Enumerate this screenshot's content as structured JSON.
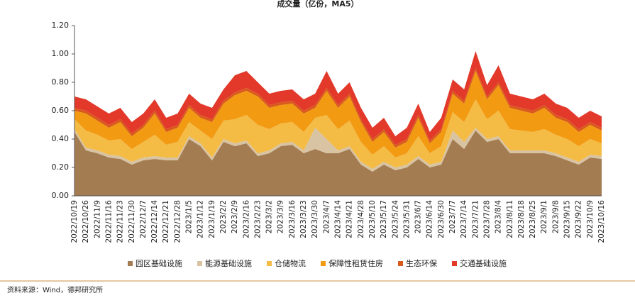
{
  "chart_data": {
    "type": "stacked_area",
    "title": "成交量（亿份，MA5）",
    "categories": [
      "2022/10/19",
      "2022/10/26",
      "2022/11/9",
      "2022/11/16",
      "2022/11/23",
      "2022/11/30",
      "2022/12/7",
      "2022/12/14",
      "2022/12/21",
      "2022/12/28",
      "2023/1/5",
      "2023/1/12",
      "2023/1/19",
      "2023/2/2",
      "2023/2/9",
      "2023/2/16",
      "2023/2/23",
      "2023/3/2",
      "2023/3/9",
      "2023/3/16",
      "2023/3/23",
      "2023/3/30",
      "2023/4/7",
      "2023/4/14",
      "2023/4/21",
      "2023/4/28",
      "2023/5/10",
      "2023/5/17",
      "2023/5/24",
      "2023/5/31",
      "2023/6/7",
      "2023/6/14",
      "2023/6/30",
      "2023/7/7",
      "2023/7/14",
      "2023/7/21",
      "2023/7/28",
      "2023/8/4",
      "2023/8/11",
      "2023/8/18",
      "2023/8/25",
      "2023/9/1",
      "2023/9/8",
      "2023/9/15",
      "2023/9/22",
      "2023/10/9",
      "2023/10/16"
    ],
    "series": [
      {
        "name": "园区基础设施",
        "color": "#a47c52",
        "values": [
          0.45,
          0.32,
          0.3,
          0.27,
          0.26,
          0.22,
          0.25,
          0.26,
          0.25,
          0.25,
          0.4,
          0.35,
          0.25,
          0.38,
          0.35,
          0.37,
          0.28,
          0.3,
          0.35,
          0.36,
          0.3,
          0.33,
          0.3,
          0.3,
          0.33,
          0.22,
          0.17,
          0.22,
          0.18,
          0.2,
          0.26,
          0.2,
          0.22,
          0.4,
          0.33,
          0.46,
          0.38,
          0.4,
          0.3,
          0.3,
          0.3,
          0.3,
          0.28,
          0.25,
          0.22,
          0.27,
          0.26
        ]
      },
      {
        "name": "能源基础设施",
        "color": "#d8c3a2",
        "values": [
          0.02,
          0.02,
          0.02,
          0.02,
          0.02,
          0.02,
          0.02,
          0.02,
          0.02,
          0.02,
          0.02,
          0.02,
          0.02,
          0.02,
          0.02,
          0.02,
          0.02,
          0.02,
          0.02,
          0.02,
          0.02,
          0.15,
          0.1,
          0.02,
          0.02,
          0.02,
          0.02,
          0.02,
          0.02,
          0.02,
          0.02,
          0.02,
          0.02,
          0.06,
          0.05,
          0.02,
          0.02,
          0.02,
          0.02,
          0.02,
          0.02,
          0.02,
          0.02,
          0.02,
          0.02,
          0.02,
          0.02
        ]
      },
      {
        "name": "仓储物流",
        "color": "#f4bb45",
        "values": [
          0.07,
          0.12,
          0.11,
          0.1,
          0.12,
          0.09,
          0.11,
          0.15,
          0.09,
          0.11,
          0.1,
          0.09,
          0.13,
          0.13,
          0.17,
          0.18,
          0.2,
          0.15,
          0.14,
          0.14,
          0.13,
          0.07,
          0.17,
          0.15,
          0.18,
          0.14,
          0.1,
          0.11,
          0.07,
          0.08,
          0.14,
          0.08,
          0.11,
          0.13,
          0.14,
          0.2,
          0.14,
          0.18,
          0.15,
          0.14,
          0.13,
          0.15,
          0.13,
          0.13,
          0.11,
          0.11,
          0.09
        ]
      },
      {
        "name": "保障性租赁住房",
        "color": "#f29a12",
        "values": [
          0.06,
          0.12,
          0.1,
          0.09,
          0.12,
          0.09,
          0.1,
          0.15,
          0.09,
          0.1,
          0.1,
          0.09,
          0.12,
          0.12,
          0.17,
          0.17,
          0.2,
          0.15,
          0.13,
          0.13,
          0.13,
          0.07,
          0.17,
          0.15,
          0.17,
          0.14,
          0.09,
          0.1,
          0.07,
          0.08,
          0.13,
          0.07,
          0.1,
          0.13,
          0.13,
          0.2,
          0.14,
          0.18,
          0.15,
          0.14,
          0.13,
          0.15,
          0.12,
          0.12,
          0.1,
          0.1,
          0.09
        ]
      },
      {
        "name": "生态环保",
        "color": "#d95a1c",
        "values": [
          0.02,
          0.02,
          0.02,
          0.02,
          0.02,
          0.02,
          0.02,
          0.02,
          0.02,
          0.02,
          0.02,
          0.02,
          0.02,
          0.02,
          0.02,
          0.02,
          0.02,
          0.02,
          0.02,
          0.02,
          0.02,
          0.02,
          0.02,
          0.02,
          0.02,
          0.02,
          0.02,
          0.02,
          0.02,
          0.02,
          0.02,
          0.02,
          0.02,
          0.02,
          0.02,
          0.02,
          0.02,
          0.02,
          0.02,
          0.02,
          0.02,
          0.02,
          0.02,
          0.02,
          0.02,
          0.02,
          0.02
        ]
      },
      {
        "name": "交通基础设施",
        "color": "#e2392b",
        "values": [
          0.08,
          0.08,
          0.08,
          0.08,
          0.08,
          0.08,
          0.08,
          0.08,
          0.08,
          0.08,
          0.08,
          0.08,
          0.08,
          0.08,
          0.12,
          0.12,
          0.08,
          0.08,
          0.08,
          0.08,
          0.08,
          0.08,
          0.12,
          0.08,
          0.08,
          0.08,
          0.08,
          0.08,
          0.06,
          0.08,
          0.08,
          0.06,
          0.08,
          0.08,
          0.08,
          0.12,
          0.08,
          0.12,
          0.08,
          0.08,
          0.08,
          0.08,
          0.08,
          0.08,
          0.08,
          0.08,
          0.08
        ]
      }
    ],
    "ylim": [
      0,
      1.2
    ],
    "yticks": [
      {
        "value": 0,
        "label": "0.00"
      },
      {
        "value": 0.2,
        "label": "0.20"
      },
      {
        "value": 0.4,
        "label": "0.40"
      },
      {
        "value": 0.6,
        "label": "0.60"
      },
      {
        "value": 0.8,
        "label": "0.80"
      },
      {
        "value": 1.0,
        "label": "1.00"
      },
      {
        "value": 1.2,
        "label": "1.20"
      }
    ],
    "legend": "bottom",
    "source": "资料来源：Wind，德邦研究所"
  }
}
